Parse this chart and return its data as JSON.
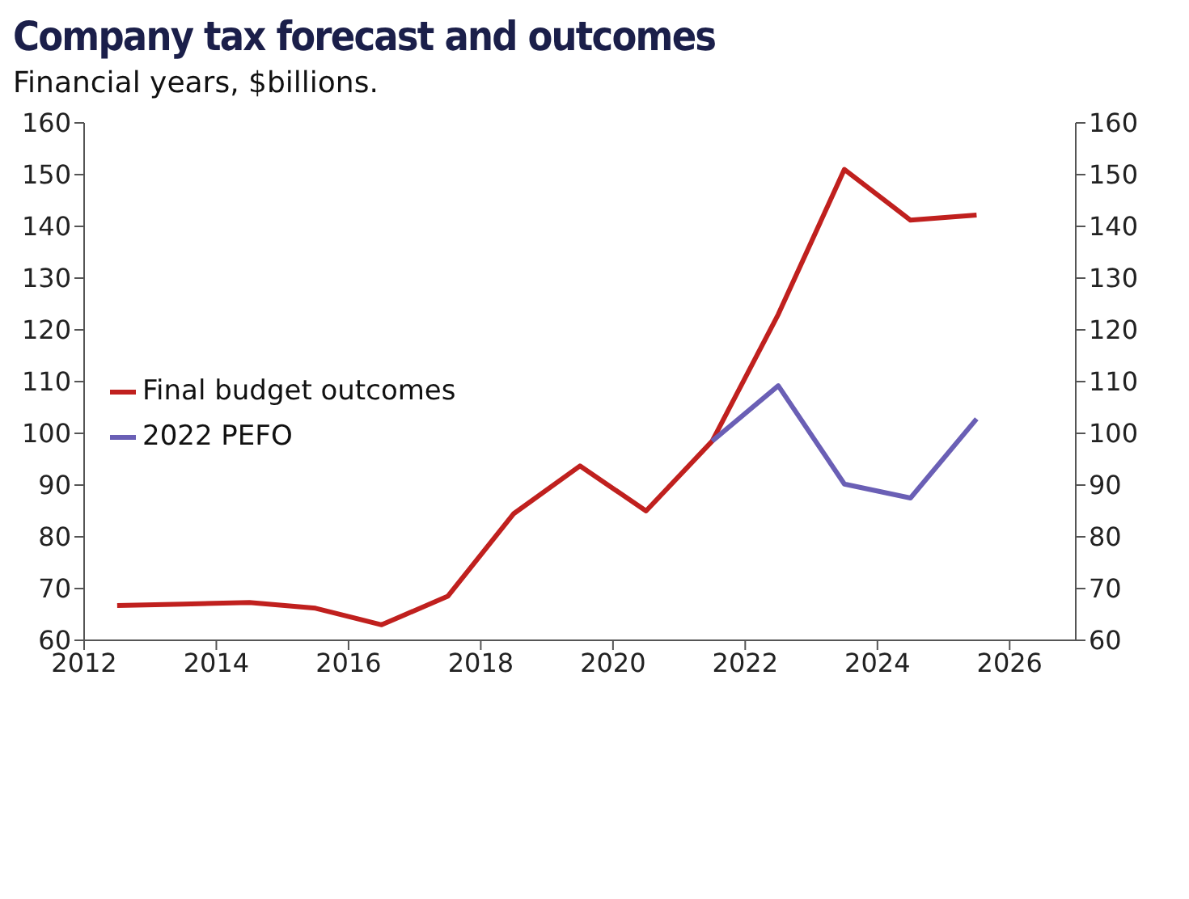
{
  "chart_data": {
    "type": "line",
    "title": "Company tax forecast and outcomes",
    "subtitle": "Financial years, $billions.",
    "xlim": [
      2012,
      2027
    ],
    "xticks": [
      2012,
      2014,
      2016,
      2018,
      2020,
      2022,
      2024,
      2026
    ],
    "ylim": [
      60,
      160
    ],
    "yticks": [
      60,
      70,
      80,
      90,
      100,
      110,
      120,
      130,
      140,
      150,
      160
    ],
    "y2lim": [
      60,
      160
    ],
    "y2ticks": [
      60,
      70,
      80,
      90,
      100,
      110,
      120,
      130,
      140,
      150,
      160
    ],
    "series": [
      {
        "name": "Final budget outcomes",
        "color": "#c0201e",
        "x": [
          2012.5,
          2013.5,
          2014.5,
          2015.5,
          2016.5,
          2017.5,
          2018.5,
          2019.5,
          2020.5,
          2021.5,
          2022.5,
          2023.5,
          2024.5,
          2025.5
        ],
        "values": [
          66.7,
          67,
          67.3,
          66.2,
          63,
          68.5,
          84.5,
          93.7,
          85,
          98.5,
          123,
          151,
          141.2,
          142.2
        ]
      },
      {
        "name": "2022 PEFO",
        "color": "#6a5fb5",
        "x": [
          2021.5,
          2022.5,
          2023.5,
          2024.5,
          2025.5
        ],
        "values": [
          98.5,
          109.2,
          90.2,
          87.5,
          102.8
        ]
      }
    ],
    "legend": "left",
    "grid": false,
    "marker": "none",
    "line_style": "solid"
  }
}
